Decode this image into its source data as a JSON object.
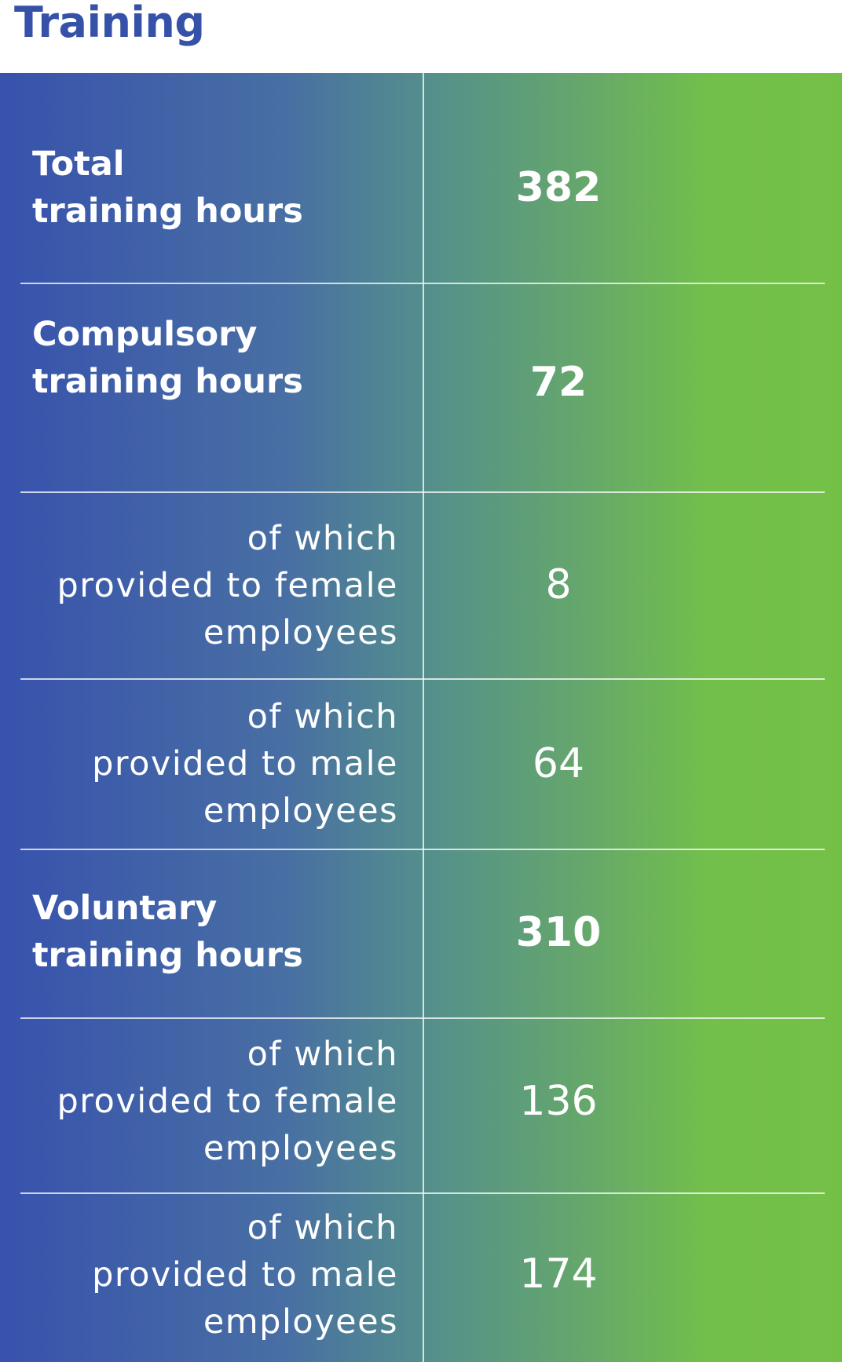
{
  "title": "Training",
  "rows": [
    {
      "label_line1": "Total",
      "label_line2": "training hours",
      "value": "382"
    },
    {
      "label_line1": "Compulsory",
      "label_line2": "training hours",
      "value": "72"
    },
    {
      "label_line1": "of which",
      "label_line2": "provided to female",
      "label_line3": "employees",
      "value": "8"
    },
    {
      "label_line1": "of which",
      "label_line2": "provided to male",
      "label_line3": "employees",
      "value": "64"
    },
    {
      "label_line1": "Voluntary",
      "label_line2": "training hours",
      "value": "310"
    },
    {
      "label_line1": "of which",
      "label_line2": "provided to female",
      "label_line3": "employees",
      "value": "136"
    },
    {
      "label_line1": "of which",
      "label_line2": "provided to male",
      "label_line3": "employees",
      "value": "174"
    }
  ],
  "colors": {
    "title": "#3651a8",
    "gradient_start": "#3852ad",
    "gradient_end": "#74c047",
    "text": "#ffffff"
  }
}
